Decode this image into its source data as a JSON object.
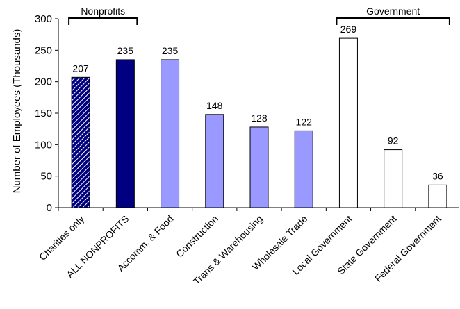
{
  "chart_data": {
    "type": "bar",
    "ylabel": "Number of Employees (Thousands)",
    "ylim": [
      0,
      300
    ],
    "yticks": [
      0,
      50,
      100,
      150,
      200,
      250,
      300
    ],
    "grid": false,
    "categories": [
      "Charities only",
      "ALL NONPROFITS",
      "Accomm. & Food",
      "Construction",
      "Trans & Warehousing",
      "Wholesale Trade",
      "Local Government",
      "State Government",
      "Federal Government"
    ],
    "values": [
      207,
      235,
      235,
      148,
      128,
      122,
      269,
      92,
      36
    ],
    "bar_styles": [
      "hatched-navy",
      "navy",
      "lavender",
      "lavender",
      "lavender",
      "lavender",
      "white",
      "white",
      "white"
    ],
    "groups": [
      {
        "label": "Nonprofits",
        "from": 0,
        "to": 1
      },
      {
        "label": "Government",
        "from": 6,
        "to": 8
      }
    ],
    "colors": {
      "navy": "#000080",
      "lavender": "#9999ff",
      "white": "#ffffff",
      "hatch_light": "#ffffff"
    }
  }
}
